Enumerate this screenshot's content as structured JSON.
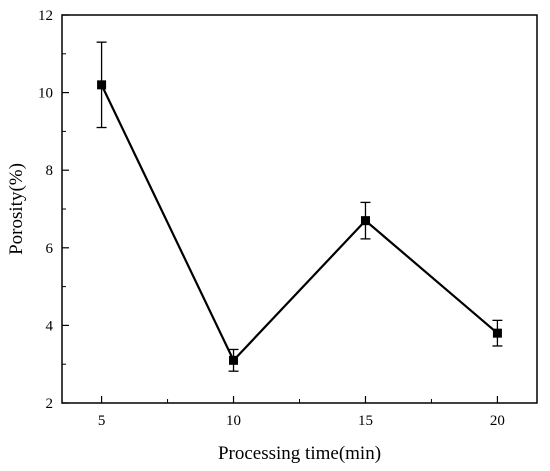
{
  "chart_data": {
    "type": "line",
    "title": "",
    "xlabel": "Processing time(min)",
    "ylabel": "Porosity(%)",
    "xlim": [
      3.5,
      21.5
    ],
    "ylim": [
      2,
      12
    ],
    "xticks": [
      5,
      10,
      15,
      20
    ],
    "yticks": [
      2,
      4,
      6,
      8,
      10,
      12
    ],
    "grid": false,
    "series": [
      {
        "x": [
          5,
          10,
          15,
          20
        ],
        "y": [
          10.2,
          3.1,
          6.7,
          3.8
        ],
        "error": [
          1.1,
          0.28,
          0.47,
          0.33
        ],
        "marker": "square",
        "color": "#000000"
      }
    ]
  }
}
